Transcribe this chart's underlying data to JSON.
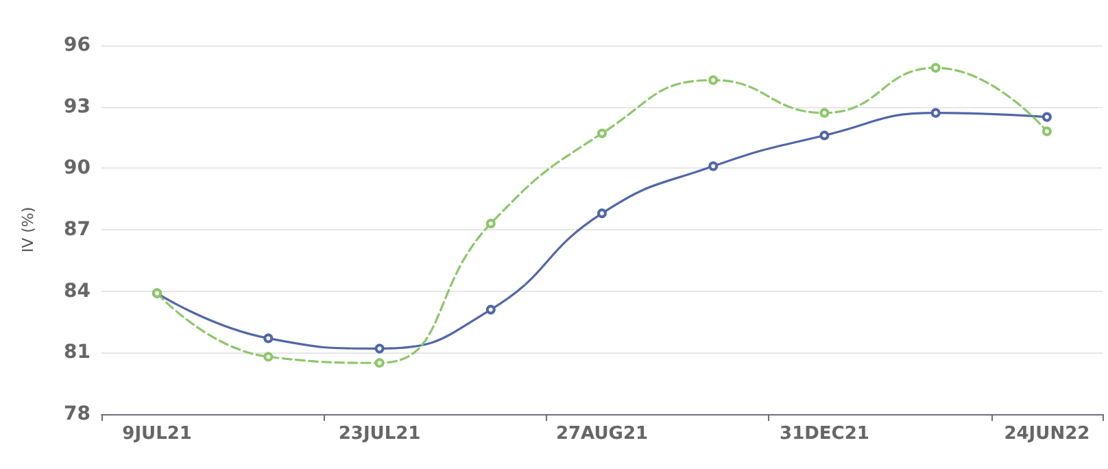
{
  "chart_data": {
    "type": "line",
    "ylabel": "IV (%)",
    "categories": [
      "9JUL21",
      null,
      "23JUL21",
      null,
      "27AUG21",
      null,
      "31DEC21",
      null,
      "24JUN22"
    ],
    "series": [
      {
        "color": "#5066a8",
        "line_style": "solid",
        "values": [
          83.9,
          81.7,
          81.2,
          83.1,
          87.8,
          90.1,
          91.6,
          92.7,
          92.5
        ]
      },
      {
        "color": "#8cc66a",
        "line_style": "dashed",
        "values": [
          83.9,
          80.8,
          80.5,
          87.3,
          91.7,
          94.3,
          92.7,
          94.9,
          91.8
        ]
      }
    ],
    "ylim": [
      78,
      96
    ],
    "yticks": [
      78,
      81,
      84,
      87,
      90,
      93,
      96
    ],
    "grid": "y",
    "marker": "circle"
  }
}
